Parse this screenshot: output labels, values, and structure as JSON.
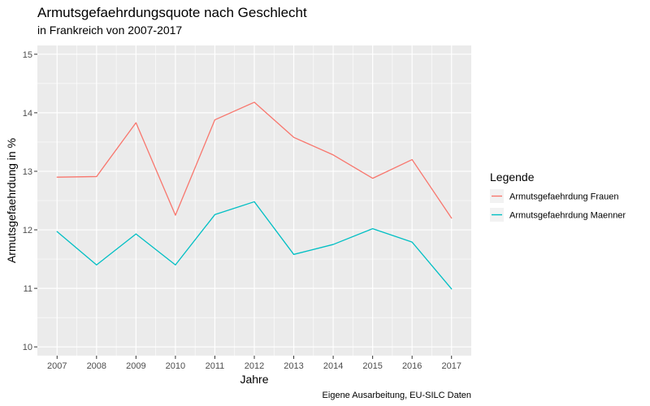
{
  "chart_data": {
    "type": "line",
    "title": "Armutsgefaehrdungsquote nach Geschlecht",
    "subtitle": "in Frankreich von 2007-2017",
    "xlabel": "Jahre",
    "ylabel": "Armutsgefaehrdung in %",
    "caption": "Eigene Ausarbeitung, EU-SILC Daten",
    "x": [
      2007,
      2008,
      2009,
      2010,
      2011,
      2012,
      2013,
      2014,
      2015,
      2016,
      2017
    ],
    "xlim": [
      2006.5,
      2017.5
    ],
    "ylim": [
      9.85,
      15.15
    ],
    "y_ticks": [
      10,
      11,
      12,
      13,
      14,
      15
    ],
    "grid": true,
    "background": "#ebebeb",
    "legend": {
      "title": "Legende",
      "position": "right"
    },
    "series": [
      {
        "name": "Armutsgefaehrdung Frauen",
        "color": "#f8766d",
        "values": [
          12.9,
          12.91,
          13.83,
          12.25,
          13.88,
          14.18,
          13.58,
          13.28,
          12.88,
          13.2,
          12.2
        ]
      },
      {
        "name": "Armutsgefaehrdung Maenner",
        "color": "#00bfc4",
        "values": [
          11.97,
          11.4,
          11.93,
          11.4,
          12.26,
          12.48,
          11.58,
          11.75,
          12.02,
          11.79,
          10.99
        ]
      }
    ]
  }
}
